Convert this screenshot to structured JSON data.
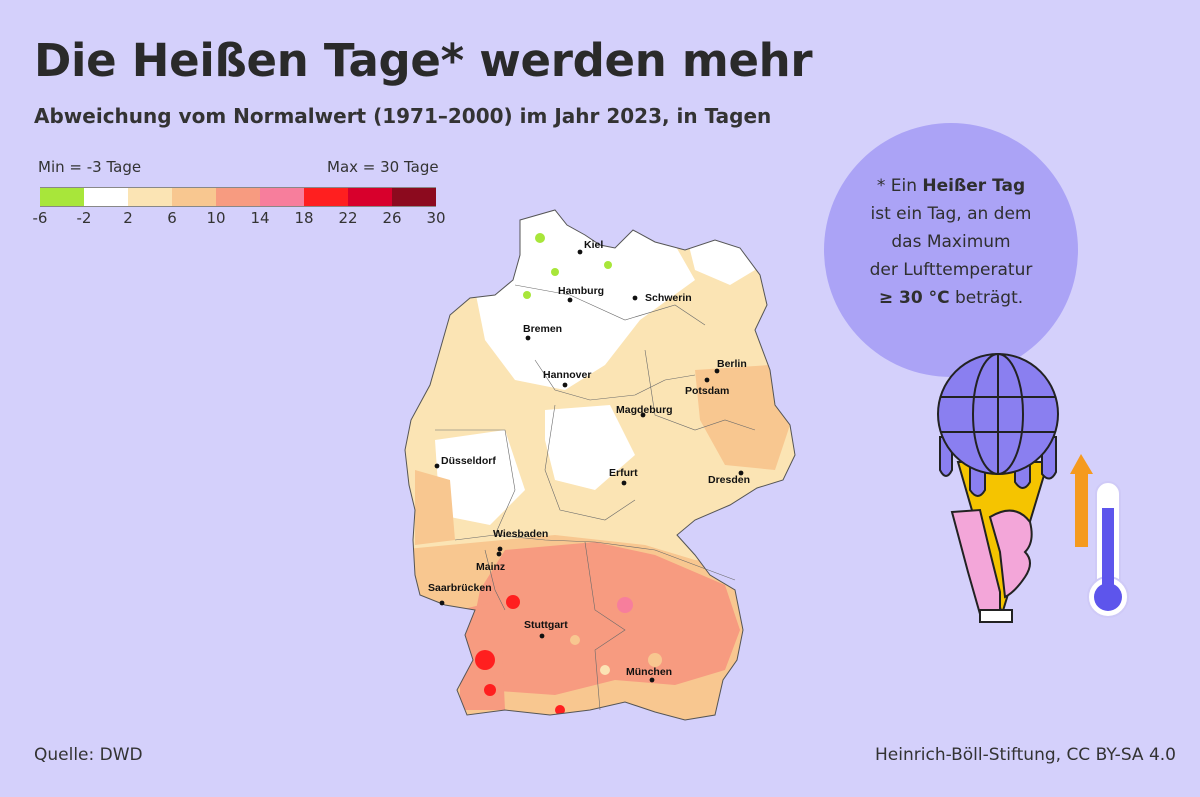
{
  "title": "Die Heißen Tage* werden mehr",
  "subtitle": "Abweichung vom Normalwert (1971–2000) im Jahr 2023, in Tagen",
  "legend": {
    "min_label": "Min = -3 Tage",
    "max_label": "Max = 30 Tage",
    "colors": [
      "#a8e63a",
      "#ffffff",
      "#fbe4b4",
      "#f8c790",
      "#f79b80",
      "#f77e9c",
      "#ff1f1f",
      "#d8002c",
      "#8c0a1e"
    ],
    "ticks": [
      "-6",
      "-2",
      "2",
      "6",
      "10",
      "14",
      "18",
      "22",
      "26",
      "30"
    ]
  },
  "cities": [
    {
      "name": "Kiel"
    },
    {
      "name": "Hamburg"
    },
    {
      "name": "Schwerin"
    },
    {
      "name": "Bremen"
    },
    {
      "name": "Berlin"
    },
    {
      "name": "Potsdam"
    },
    {
      "name": "Hannover"
    },
    {
      "name": "Magdeburg"
    },
    {
      "name": "Düsseldorf"
    },
    {
      "name": "Erfurt"
    },
    {
      "name": "Dresden"
    },
    {
      "name": "Wiesbaden"
    },
    {
      "name": "Mainz"
    },
    {
      "name": "Saarbrücken"
    },
    {
      "name": "Stuttgart"
    },
    {
      "name": "München"
    }
  ],
  "info": {
    "prefix": "* Ein ",
    "term": "Heißer Tag",
    "line2": "ist ein Tag, an dem",
    "line3": "das Maximum",
    "line4": "der Lufttemperatur",
    "threshold": "≥ 30 °C",
    "suffix": " beträgt."
  },
  "footer": {
    "source": "Quelle: DWD",
    "credit": "Heinrich-Böll-Stiftung, CC BY-SA 4.0"
  },
  "icons": {
    "illustration": "ice-cream-globe-icon",
    "arrow": "up-arrow-icon",
    "thermometer": "thermometer-icon"
  }
}
